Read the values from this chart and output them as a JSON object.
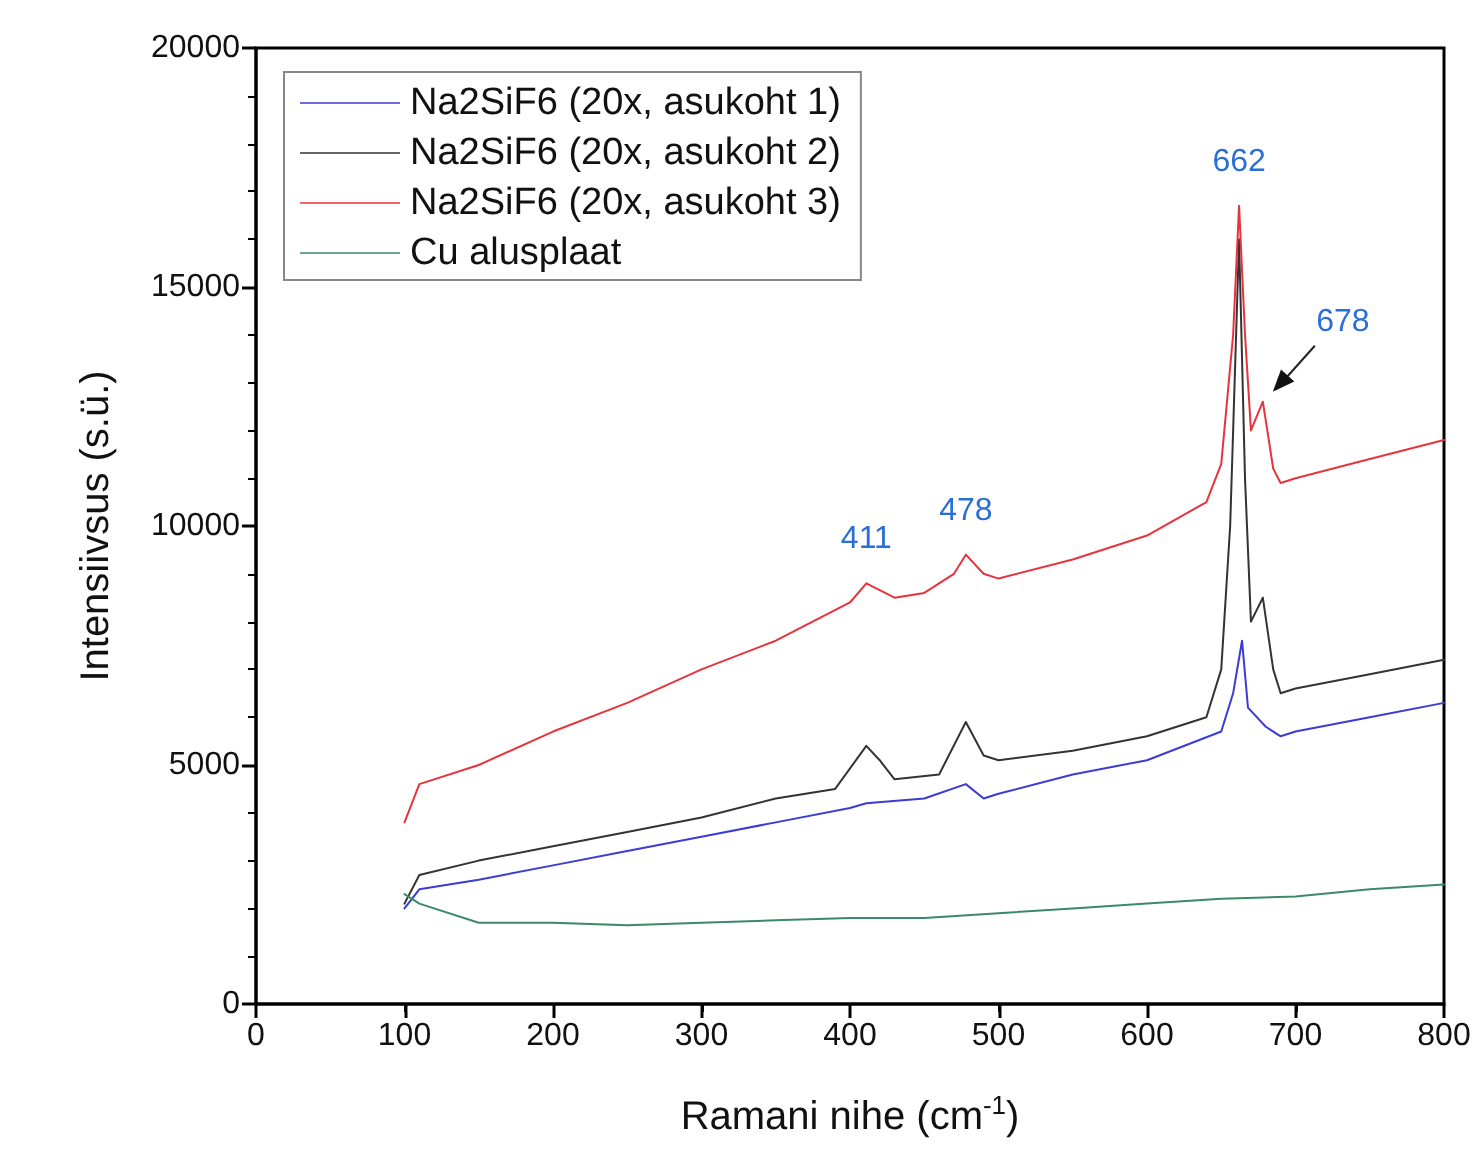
{
  "chart_data": {
    "type": "line",
    "xlabel": "Ramani nihe (cm$^{-1}$)",
    "ylabel": "Intensiivsus (s.ü.)",
    "xlim": [
      0,
      800
    ],
    "xticks": [
      0,
      100,
      200,
      300,
      400,
      500,
      600,
      700,
      800
    ],
    "ylim": [
      0,
      20000
    ],
    "yticks": [
      0,
      5000,
      10000,
      15000,
      20000
    ],
    "grid": false,
    "legend": "top left",
    "marker": "none",
    "line_style": "solid",
    "annotations": [
      {
        "text": "411",
        "x": 411,
        "y": 8800
      },
      {
        "text": "478",
        "x": 478,
        "y": 9400
      },
      {
        "text": "662",
        "x": 662,
        "y": 16700
      },
      {
        "text": "678",
        "x": 678,
        "y": 12600
      }
    ],
    "series": [
      {
        "name": "Na2SiF6 (20x, asukoht 1)",
        "color": "#3b3bd6",
        "x": [
          100,
          110,
          150,
          200,
          250,
          300,
          350,
          400,
          411,
          450,
          478,
          490,
          500,
          550,
          600,
          650,
          658,
          664,
          668,
          680,
          690,
          700,
          750,
          800
        ],
        "values": [
          2000,
          2400,
          2600,
          2900,
          3200,
          3500,
          3800,
          4100,
          4200,
          4300,
          4600,
          4300,
          4400,
          4800,
          5100,
          5700,
          6500,
          7600,
          6200,
          5800,
          5600,
          5700,
          6000,
          6300
        ]
      },
      {
        "name": "Na2SiF6 (20x, asukoht 2)",
        "color": "#333333",
        "x": [
          100,
          110,
          150,
          200,
          250,
          300,
          350,
          390,
          411,
          420,
          430,
          460,
          478,
          490,
          500,
          550,
          600,
          640,
          650,
          656,
          662,
          666,
          670,
          678,
          685,
          690,
          700,
          750,
          800
        ],
        "values": [
          2100,
          2700,
          3000,
          3300,
          3600,
          3900,
          4300,
          4500,
          5400,
          5100,
          4700,
          4800,
          5900,
          5200,
          5100,
          5300,
          5600,
          6000,
          7000,
          10000,
          16000,
          11000,
          8000,
          8500,
          7000,
          6500,
          6600,
          6900,
          7200
        ]
      },
      {
        "name": "Na2SiF6 (20x, asukoht 3)",
        "color": "#e8333c",
        "x": [
          100,
          110,
          150,
          200,
          250,
          300,
          350,
          400,
          411,
          430,
          450,
          470,
          478,
          490,
          500,
          550,
          600,
          640,
          650,
          658,
          662,
          666,
          670,
          678,
          685,
          690,
          700,
          750,
          800
        ],
        "values": [
          3800,
          4600,
          5000,
          5700,
          6300,
          7000,
          7600,
          8400,
          8800,
          8500,
          8600,
          9000,
          9400,
          9000,
          8900,
          9300,
          9800,
          10500,
          11300,
          14000,
          16700,
          14000,
          12000,
          12600,
          11200,
          10900,
          11000,
          11400,
          11800
        ]
      },
      {
        "name": "Cu alusplaat",
        "color": "#3a8a6a",
        "x": [
          100,
          110,
          150,
          200,
          250,
          300,
          350,
          400,
          450,
          500,
          550,
          600,
          650,
          700,
          750,
          800
        ],
        "values": [
          2300,
          2100,
          1700,
          1700,
          1650,
          1700,
          1750,
          1800,
          1800,
          1900,
          2000,
          2100,
          2200,
          2250,
          2400,
          2500
        ]
      }
    ]
  }
}
